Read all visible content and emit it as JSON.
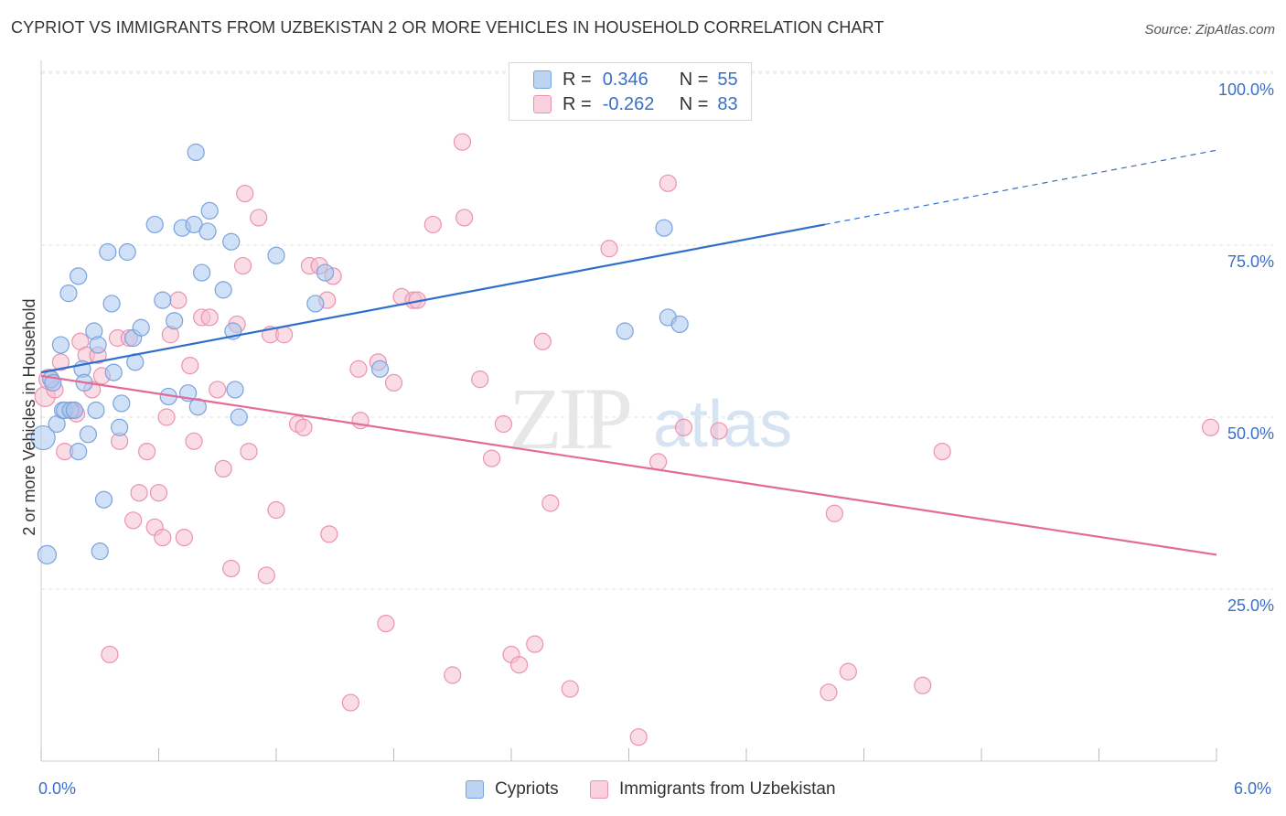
{
  "title": "CYPRIOT VS IMMIGRANTS FROM UZBEKISTAN 2 OR MORE VEHICLES IN HOUSEHOLD CORRELATION CHART",
  "source": "Source: ZipAtlas.com",
  "watermark": {
    "zip": "ZIP",
    "atlas": "atlas"
  },
  "legend": {
    "r_label": "R =",
    "n_label": "N =",
    "rows": [
      {
        "series": "Cypriots",
        "r": "0.346",
        "n": "55"
      },
      {
        "series": "Immigrants from Uzbekistan",
        "r": "-0.262",
        "n": "83"
      }
    ]
  },
  "x_axis": {
    "min_label": "0.0%",
    "max_label": "6.0%"
  },
  "colors": {
    "blue_fill": "#a9c6ee",
    "blue_stroke": "#7aa3dd",
    "blue_line": "#2f6fcb",
    "pink_fill": "#f6bfd0",
    "pink_stroke": "#ea93b0",
    "pink_line": "#e46a98",
    "tick_label": "#3a6fc9",
    "grid": "#e3e3e3"
  },
  "chart_data": {
    "type": "scatter",
    "title": "CYPRIOT VS IMMIGRANTS FROM UZBEKISTAN 2 OR MORE VEHICLES IN HOUSEHOLD CORRELATION CHART",
    "xlabel": "",
    "ylabel": "2 or more Vehicles in Household",
    "xlim": [
      0,
      6
    ],
    "ylim": [
      0,
      105
    ],
    "y_ticks": [
      {
        "value": 25,
        "label": "25.0%"
      },
      {
        "value": 50,
        "label": "50.0%"
      },
      {
        "value": 75,
        "label": "75.0%"
      },
      {
        "value": 100,
        "label": "100.0%"
      }
    ],
    "x_ticks": [
      0,
      0.6,
      1.2,
      1.8,
      2.4,
      3.0,
      3.6,
      4.2,
      4.8,
      5.4,
      6.0
    ],
    "grid": true,
    "legend_position": "top-center",
    "series": [
      {
        "name": "Cypriots",
        "color": "#a9c6ee",
        "trend": {
          "x0": 0.0,
          "y0": 56.5,
          "x1": 4.0,
          "y1": 78.0,
          "dash_to_x": 6.0,
          "dash_to_y": 88.8
        },
        "points": [
          [
            0.01,
            47,
            13
          ],
          [
            0.03,
            30,
            10
          ],
          [
            0.05,
            55.5,
            9
          ],
          [
            0.08,
            49,
            9
          ],
          [
            0.1,
            60.5,
            9
          ],
          [
            0.11,
            51,
            9
          ],
          [
            0.12,
            51,
            9
          ],
          [
            0.14,
            68,
            9
          ],
          [
            0.15,
            51,
            9
          ],
          [
            0.17,
            51,
            9
          ],
          [
            0.19,
            45,
            9
          ],
          [
            0.19,
            70.5,
            9
          ],
          [
            0.21,
            57,
            9
          ],
          [
            0.22,
            55,
            9
          ],
          [
            0.24,
            47.5,
            9
          ],
          [
            0.27,
            62.5,
            9
          ],
          [
            0.29,
            60.5,
            9
          ],
          [
            0.32,
            38,
            9
          ],
          [
            0.34,
            74,
            9
          ],
          [
            0.36,
            66.5,
            9
          ],
          [
            0.37,
            56.5,
            9
          ],
          [
            0.4,
            48.5,
            9
          ],
          [
            0.41,
            52,
            9
          ],
          [
            0.44,
            74,
            9
          ],
          [
            0.47,
            61.5,
            9
          ],
          [
            0.48,
            58,
            9
          ],
          [
            0.51,
            63,
            9
          ],
          [
            0.58,
            78,
            9
          ],
          [
            0.62,
            67,
            9
          ],
          [
            0.65,
            53,
            9
          ],
          [
            0.68,
            64,
            9
          ],
          [
            0.72,
            77.5,
            9
          ],
          [
            0.75,
            53.5,
            9
          ],
          [
            0.78,
            78,
            9
          ],
          [
            0.79,
            88.5,
            9
          ],
          [
            0.8,
            51.5,
            9
          ],
          [
            0.82,
            71,
            9
          ],
          [
            0.85,
            77,
            9
          ],
          [
            0.86,
            80,
            9
          ],
          [
            0.93,
            68.5,
            9
          ],
          [
            0.97,
            75.5,
            9
          ],
          [
            0.98,
            62.5,
            9
          ],
          [
            0.99,
            54,
            9
          ],
          [
            1.01,
            50,
            9
          ],
          [
            1.2,
            73.5,
            9
          ],
          [
            1.4,
            66.5,
            9
          ],
          [
            1.45,
            71,
            9
          ],
          [
            1.73,
            57,
            9
          ],
          [
            2.98,
            62.5,
            9
          ],
          [
            3.18,
            77.5,
            9
          ],
          [
            3.2,
            64.5,
            9
          ],
          [
            3.26,
            63.5,
            9
          ],
          [
            0.3,
            30.5,
            9
          ],
          [
            0.06,
            55,
            9
          ],
          [
            0.28,
            51,
            9
          ]
        ]
      },
      {
        "name": "Immigrants from Uzbekistan",
        "color": "#f6bfd0",
        "trend": {
          "x0": 0.0,
          "y0": 56.0,
          "x1": 6.0,
          "y1": 30.0
        },
        "points": [
          [
            0.02,
            53,
            11
          ],
          [
            0.04,
            55.5,
            11
          ],
          [
            0.07,
            54,
            9
          ],
          [
            0.1,
            58,
            9
          ],
          [
            0.12,
            45,
            9
          ],
          [
            0.16,
            51,
            9
          ],
          [
            0.18,
            50.5,
            9
          ],
          [
            0.2,
            61,
            9
          ],
          [
            0.23,
            59,
            9
          ],
          [
            0.26,
            54,
            9
          ],
          [
            0.29,
            59,
            9
          ],
          [
            0.31,
            56,
            9
          ],
          [
            0.35,
            15.5,
            9
          ],
          [
            0.39,
            61.5,
            9
          ],
          [
            0.4,
            46.5,
            9
          ],
          [
            0.45,
            61.5,
            9
          ],
          [
            0.47,
            35,
            9
          ],
          [
            0.5,
            39,
            9
          ],
          [
            0.54,
            45,
            9
          ],
          [
            0.58,
            34,
            9
          ],
          [
            0.62,
            32.5,
            9
          ],
          [
            0.64,
            50,
            9
          ],
          [
            0.66,
            62,
            9
          ],
          [
            0.7,
            67,
            9
          ],
          [
            0.73,
            32.5,
            9
          ],
          [
            0.76,
            57.5,
            9
          ],
          [
            0.78,
            46.5,
            9
          ],
          [
            0.82,
            64.5,
            9
          ],
          [
            0.86,
            64.5,
            9
          ],
          [
            0.9,
            54,
            9
          ],
          [
            0.93,
            42.5,
            9
          ],
          [
            0.97,
            28,
            9
          ],
          [
            1.0,
            63.5,
            9
          ],
          [
            1.03,
            72,
            9
          ],
          [
            1.04,
            82.5,
            9
          ],
          [
            1.06,
            45,
            9
          ],
          [
            1.11,
            79,
            9
          ],
          [
            1.15,
            27,
            9
          ],
          [
            1.17,
            62,
            9
          ],
          [
            1.2,
            36.5,
            9
          ],
          [
            1.24,
            62,
            9
          ],
          [
            1.31,
            49,
            9
          ],
          [
            1.34,
            48.5,
            9
          ],
          [
            1.37,
            72,
            9
          ],
          [
            1.42,
            72,
            9
          ],
          [
            1.46,
            67,
            9
          ],
          [
            1.47,
            33,
            9
          ],
          [
            1.49,
            70.5,
            9
          ],
          [
            1.58,
            8.5,
            9
          ],
          [
            1.62,
            57,
            9
          ],
          [
            1.63,
            49.5,
            9
          ],
          [
            1.72,
            58,
            9
          ],
          [
            1.76,
            20,
            9
          ],
          [
            1.8,
            55,
            9
          ],
          [
            1.84,
            67.5,
            9
          ],
          [
            1.9,
            67,
            9
          ],
          [
            1.92,
            67,
            9
          ],
          [
            2.0,
            78,
            9
          ],
          [
            2.1,
            12.5,
            9
          ],
          [
            2.15,
            90,
            9
          ],
          [
            2.16,
            79,
            9
          ],
          [
            2.24,
            55.5,
            9
          ],
          [
            2.3,
            44,
            9
          ],
          [
            2.36,
            49,
            9
          ],
          [
            2.4,
            15.5,
            9
          ],
          [
            2.44,
            14,
            9
          ],
          [
            2.52,
            17,
            9
          ],
          [
            2.56,
            61,
            9
          ],
          [
            2.6,
            37.5,
            9
          ],
          [
            2.7,
            10.5,
            9
          ],
          [
            2.9,
            74.5,
            9
          ],
          [
            3.05,
            3.5,
            9
          ],
          [
            3.15,
            43.5,
            9
          ],
          [
            3.2,
            84,
            9
          ],
          [
            3.28,
            48.5,
            9
          ],
          [
            3.46,
            48,
            9
          ],
          [
            4.02,
            10,
            9
          ],
          [
            4.05,
            36,
            9
          ],
          [
            4.12,
            13,
            9
          ],
          [
            4.5,
            11,
            9
          ],
          [
            4.6,
            45,
            9
          ],
          [
            5.97,
            48.5,
            9
          ],
          [
            0.6,
            39,
            9
          ]
        ]
      }
    ]
  }
}
